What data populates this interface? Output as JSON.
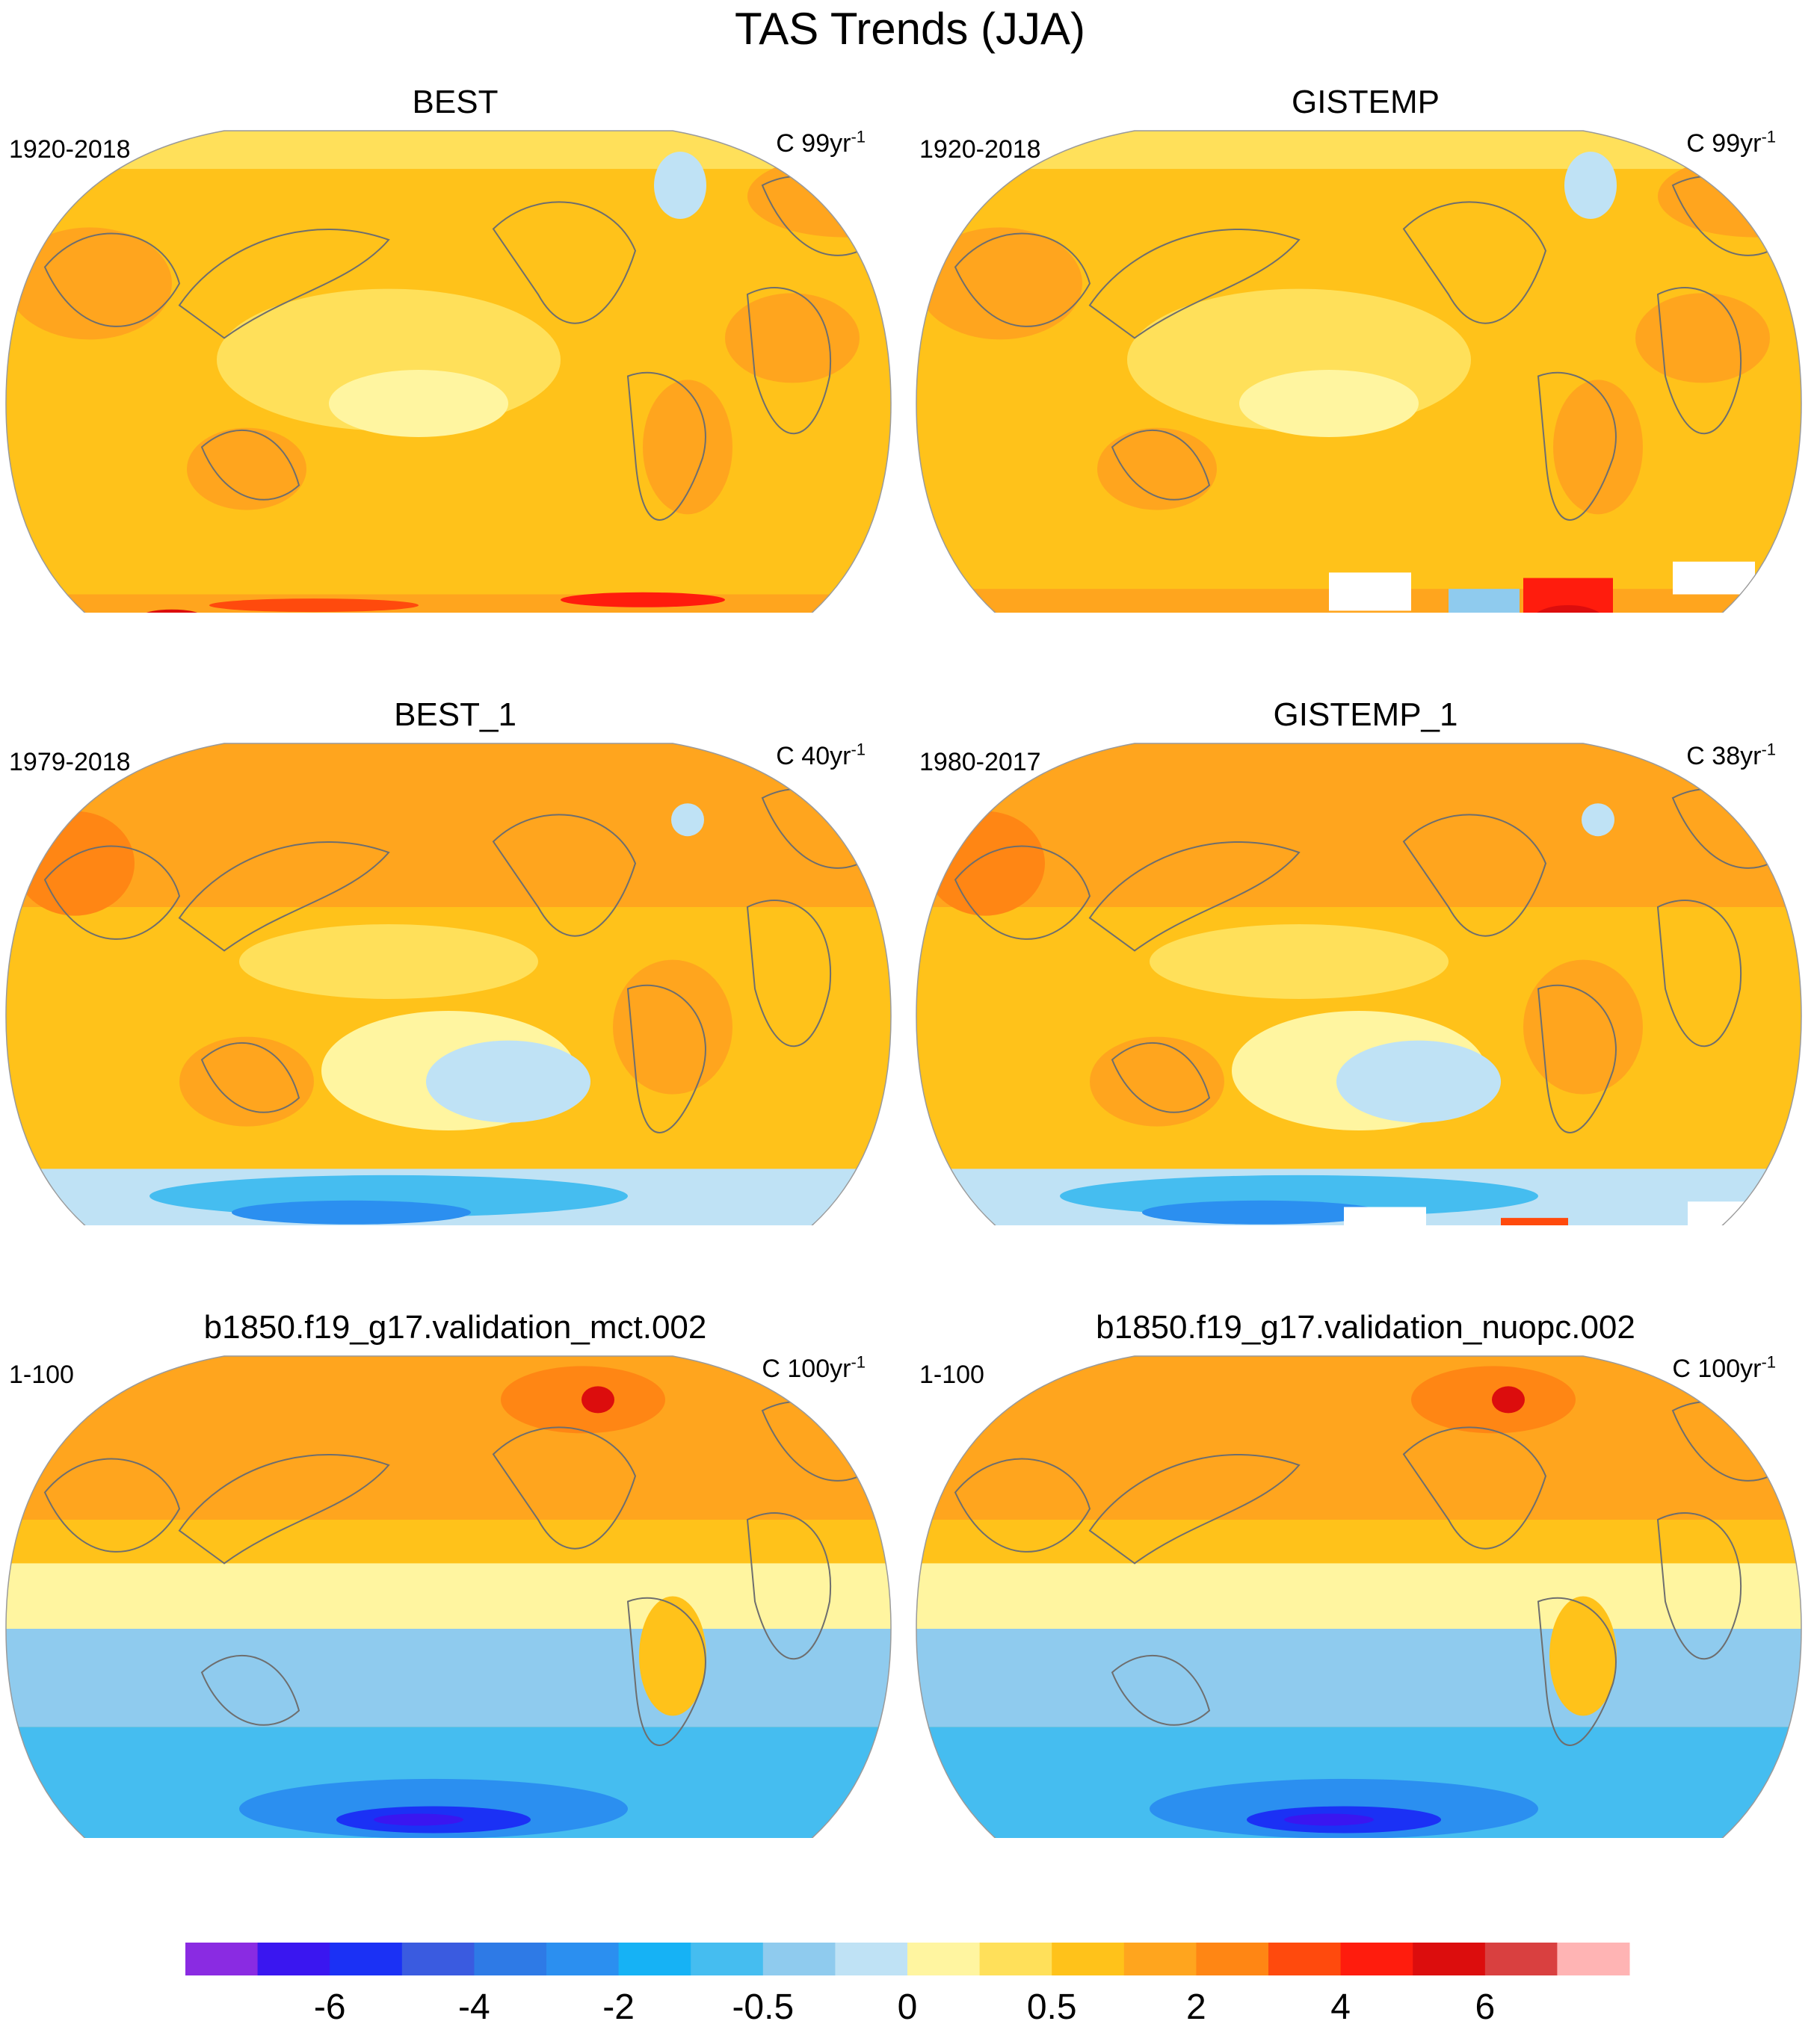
{
  "figure": {
    "title": "TAS Trends (JJA)"
  },
  "panels": [
    {
      "id": "best",
      "title": "BEST",
      "period": "1920-2018",
      "units": "C 99yr",
      "units_exp": "-1",
      "pattern": "warm_uniform",
      "antarctic_band": "red_band"
    },
    {
      "id": "gistemp",
      "title": "GISTEMP",
      "period": "1920-2018",
      "units": "C 99yr",
      "units_exp": "-1",
      "pattern": "warm_uniform",
      "antarctic_band": "missing_patches"
    },
    {
      "id": "best1",
      "title": "BEST_1",
      "period": "1979-2018",
      "units": "C 40yr",
      "units_exp": "-1",
      "pattern": "warm_cool_south",
      "antarctic_band": "blue_band"
    },
    {
      "id": "gistemp1",
      "title": "GISTEMP_1",
      "period": "1980-2017",
      "units": "C 38yr",
      "units_exp": "-1",
      "pattern": "warm_cool_south",
      "antarctic_band": "missing_patches"
    },
    {
      "id": "mct",
      "title": "b1850.f19_g17.validation_mct.002",
      "period": "1-100",
      "units": "C 100yr",
      "units_exp": "-1",
      "pattern": "north_warm_south_cold",
      "antarctic_band": "none"
    },
    {
      "id": "nuopc",
      "title": "b1850.f19_g17.validation_nuopc.002",
      "period": "1-100",
      "units": "C 100yr",
      "units_exp": "-1",
      "pattern": "north_warm_south_cold",
      "antarctic_band": "none"
    }
  ],
  "colorbar": {
    "colors": [
      "#8a2be2",
      "#3a16f0",
      "#1b31f5",
      "#3a5be0",
      "#2e7ae6",
      "#2b8ff0",
      "#16b2f5",
      "#45bdf0",
      "#8fcbee",
      "#bfe2f5",
      "#fff5a0",
      "#ffe05a",
      "#ffc21a",
      "#ffa51e",
      "#ff8614",
      "#ff4a0d",
      "#ff1c0d",
      "#dc0d0d",
      "#d94040",
      "#ffb4b4"
    ],
    "labels": [
      "-6",
      "-4",
      "-2",
      "-0.5",
      "0",
      "0.5",
      "2",
      "4",
      "6"
    ]
  },
  "legend_colors": {
    "land_outline": "#6e6e6e",
    "missing": "#ffffff"
  }
}
